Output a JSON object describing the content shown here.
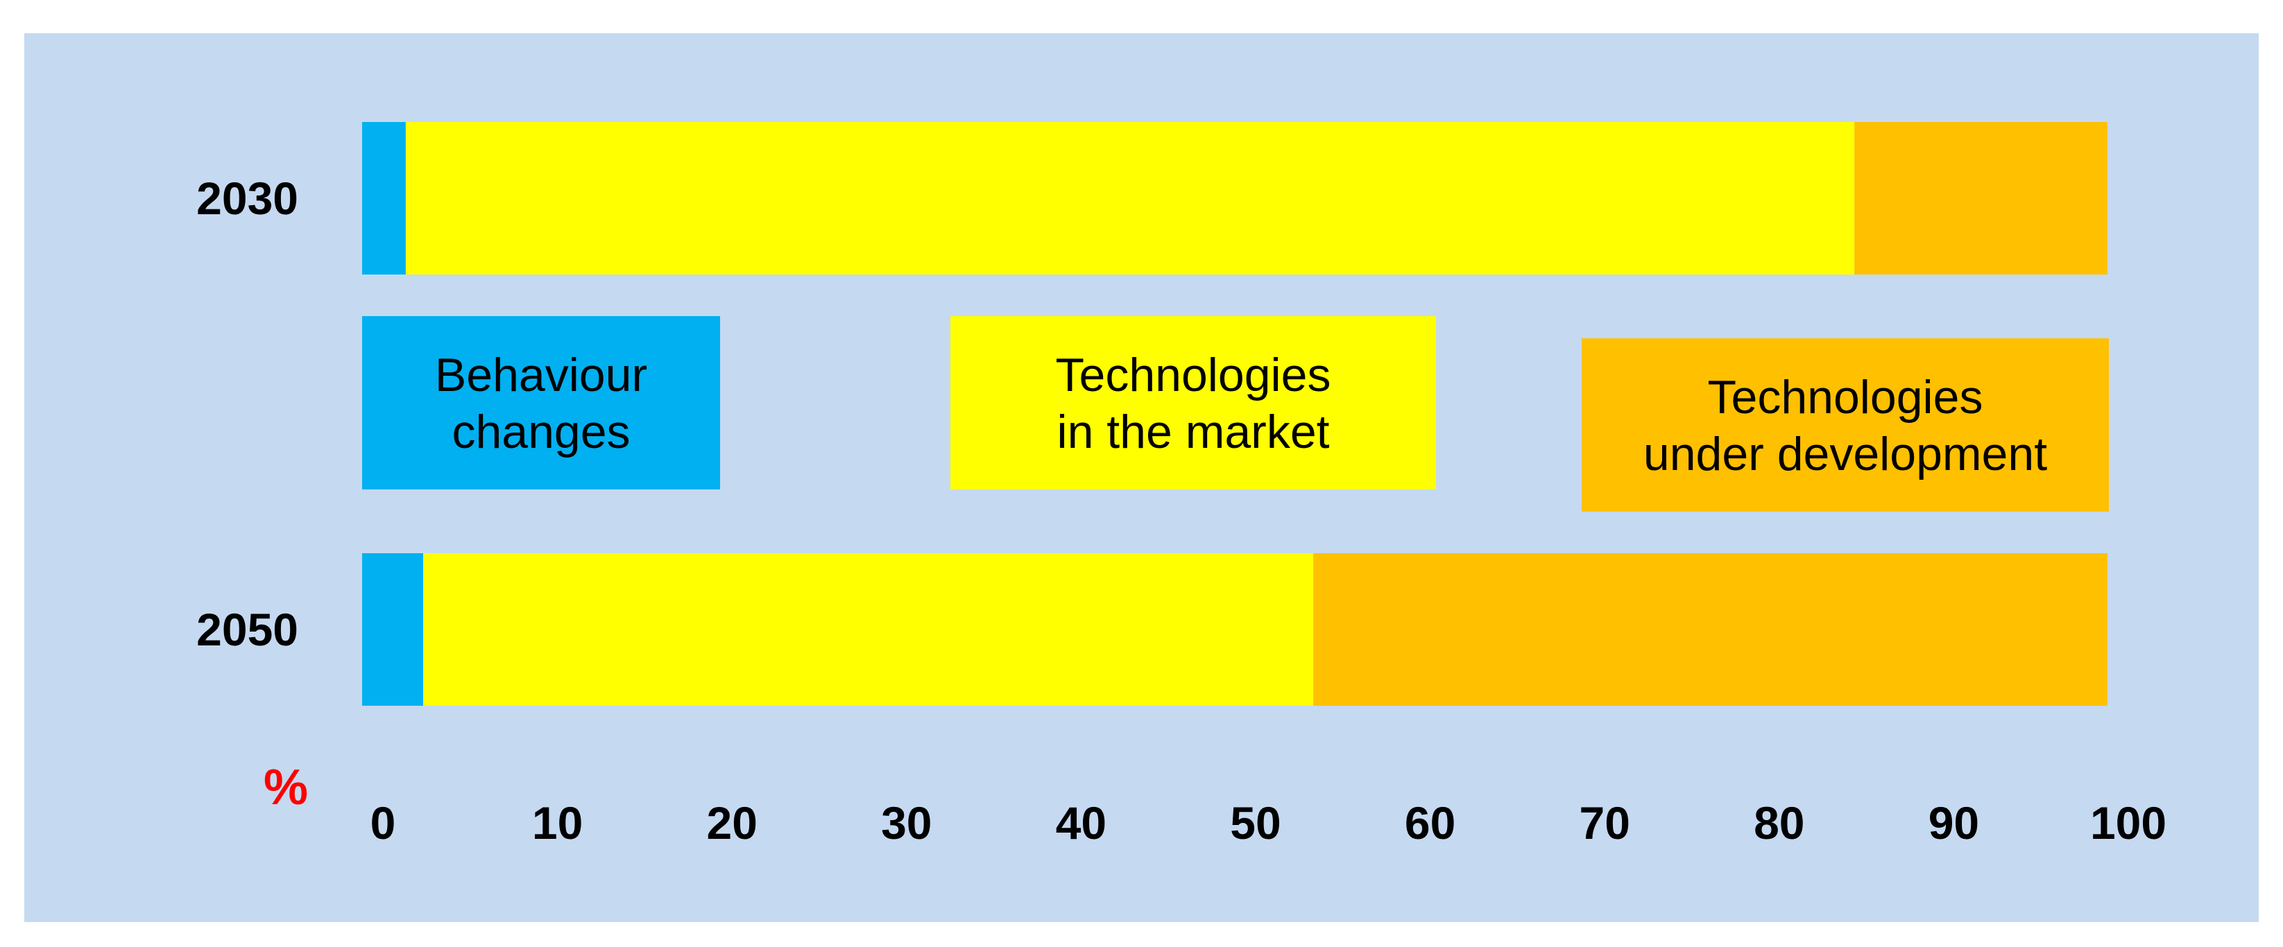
{
  "chart_data": {
    "type": "bar",
    "orientation": "horizontal",
    "stacked": true,
    "categories": [
      "2030",
      "2050"
    ],
    "series": [
      {
        "name": "Behaviour changes",
        "color": "#00b0f0",
        "values": [
          2.5,
          3.5
        ]
      },
      {
        "name": "Technologies in the market",
        "color": "#ffff00",
        "values": [
          83,
          51
        ]
      },
      {
        "name": "Technologies under development",
        "color": "#ffc000",
        "values": [
          14.5,
          45.5
        ]
      }
    ],
    "legend_lines": [
      [
        "Behaviour",
        "changes"
      ],
      [
        "Technologies",
        "in the market"
      ],
      [
        "Technologies",
        "under development"
      ]
    ],
    "xlim": [
      0,
      100
    ],
    "x_ticks": [
      "0",
      "10",
      "20",
      "30",
      "40",
      "50",
      "60",
      "70",
      "80",
      "90",
      "100"
    ],
    "x_tick_values": [
      0,
      10,
      20,
      30,
      40,
      50,
      60,
      70,
      80,
      90,
      100
    ],
    "x_unit_label": "%",
    "x_unit_color": "#ff0000",
    "background_color": "#c5d9f1",
    "grid": false,
    "legend_placement": "between bars"
  }
}
